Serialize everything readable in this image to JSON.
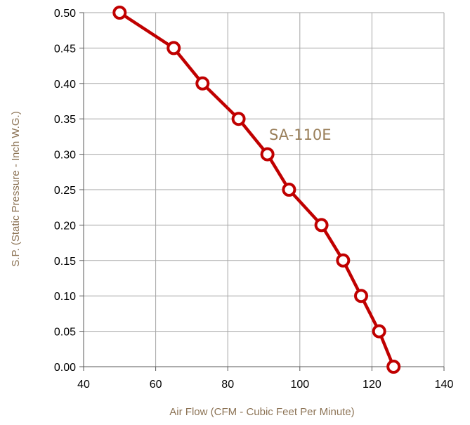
{
  "chart_data": {
    "type": "line",
    "xlabel": "Air Flow (CFM - Cubic Feet Per Minute)",
    "ylabel": "S.P. (Static Pressure - Inch W.G.)",
    "xlim": [
      40,
      140
    ],
    "ylim": [
      0,
      0.5
    ],
    "x_ticks": [
      "40",
      "60",
      "80",
      "100",
      "120",
      "140"
    ],
    "y_ticks": [
      "0.00",
      "0.05",
      "0.10",
      "0.15",
      "0.20",
      "0.25",
      "0.30",
      "0.35",
      "0.40",
      "0.45",
      "0.50"
    ],
    "grid": true,
    "annotation": "SA-110E",
    "series": [
      {
        "color": "#c00000",
        "marker": "hollow-circle",
        "points": [
          {
            "x": 50,
            "y": 0.5
          },
          {
            "x": 65,
            "y": 0.45
          },
          {
            "x": 73,
            "y": 0.4
          },
          {
            "x": 83,
            "y": 0.35
          },
          {
            "x": 91,
            "y": 0.3
          },
          {
            "x": 97,
            "y": 0.25
          },
          {
            "x": 106,
            "y": 0.2
          },
          {
            "x": 112,
            "y": 0.15
          },
          {
            "x": 117,
            "y": 0.1
          },
          {
            "x": 122,
            "y": 0.05
          },
          {
            "x": 126,
            "y": 0.0
          }
        ]
      }
    ]
  }
}
